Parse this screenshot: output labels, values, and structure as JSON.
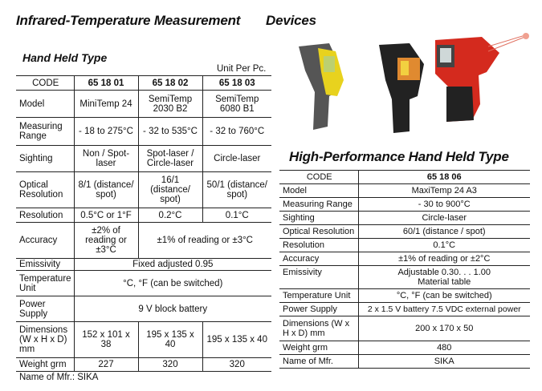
{
  "page": {
    "title": "Infrared-Temperature Measurement",
    "title2": "Devices"
  },
  "hand_held": {
    "heading": "Hand Held Type",
    "unit_note": "Unit Per Pc.",
    "rows": [
      {
        "label": "CODE",
        "values": [
          "65 18 01",
          "65 18 02",
          "65 18 03"
        ]
      },
      {
        "label": "Model",
        "values": [
          "MiniTemp 24",
          "SemiTemp 2030 B2",
          "SemiTemp 6080 B1"
        ]
      },
      {
        "label": "Measuring Range",
        "values": [
          "- 18 to 275°C",
          "- 32 to 535°C",
          "- 32 to 760°C"
        ]
      },
      {
        "label": "Sighting",
        "values": [
          "Non / Spot-laser",
          "Spot-laser / Circle-laser",
          "Circle-laser"
        ]
      },
      {
        "label": "Optical Resolution",
        "values": [
          "8/1 (distance/ spot)",
          "16/1 (distance/ spot)",
          "50/1 (distance/ spot)"
        ]
      },
      {
        "label": "Resolution",
        "values": [
          "0.5°C or 1°F",
          "0.2°C",
          "0.1°C"
        ]
      },
      {
        "label": "Accuracy",
        "values": [
          "±2% of reading or ±3°C",
          "±1% of reading or ±3°C"
        ]
      },
      {
        "label": "Emissivity",
        "values": [
          "Fixed adjusted 0.95"
        ]
      },
      {
        "label": "Temperature Unit",
        "values": [
          "°C, °F (can be switched)"
        ]
      },
      {
        "label": "Power Supply",
        "values": [
          "9 V block battery"
        ]
      },
      {
        "label": "Dimensions (W x H x D) mm",
        "values": [
          "152 x 101 x 38",
          "195 x 135 x 40",
          "195 x 135 x 40"
        ]
      },
      {
        "label": "Weight grm",
        "values": [
          "227",
          "320",
          "320"
        ]
      }
    ],
    "mfr": "Name of Mfr.:  SIKA"
  },
  "high_perf": {
    "heading": "High-Performance Hand Held Type",
    "rows": [
      {
        "label": "CODE",
        "value": "65 18 06"
      },
      {
        "label": "Model",
        "value": "MaxiTemp 24 A3"
      },
      {
        "label": "Measuring Range",
        "value": "- 30 to 900°C"
      },
      {
        "label": "Sighting",
        "value": "Circle-laser"
      },
      {
        "label": "Optical Resolution",
        "value": "60/1 (distance / spot)"
      },
      {
        "label": "Resolution",
        "value": "0.1°C"
      },
      {
        "label": "Accuracy",
        "value": "±1% of reading or ±2°C"
      },
      {
        "label": "Emissivity",
        "value": "Adjustable 0.30. . . 1.00",
        "value2": "Material table"
      },
      {
        "label": "Temperature Unit",
        "value": "°C, °F (can be switched)"
      },
      {
        "label": "Power Supply",
        "value": "2 x 1.5 V battery 7.5 VDC external power"
      },
      {
        "label": "Dimensions (W x H x D) mm",
        "value": "200 x 170 x 50"
      },
      {
        "label": "Weight grm",
        "value": "480"
      },
      {
        "label": "Name of Mfr.",
        "value": "SIKA"
      }
    ]
  },
  "colors": {
    "yellow": "#e8d21e",
    "red": "#d42a1e",
    "dark": "#2a2a2a"
  }
}
